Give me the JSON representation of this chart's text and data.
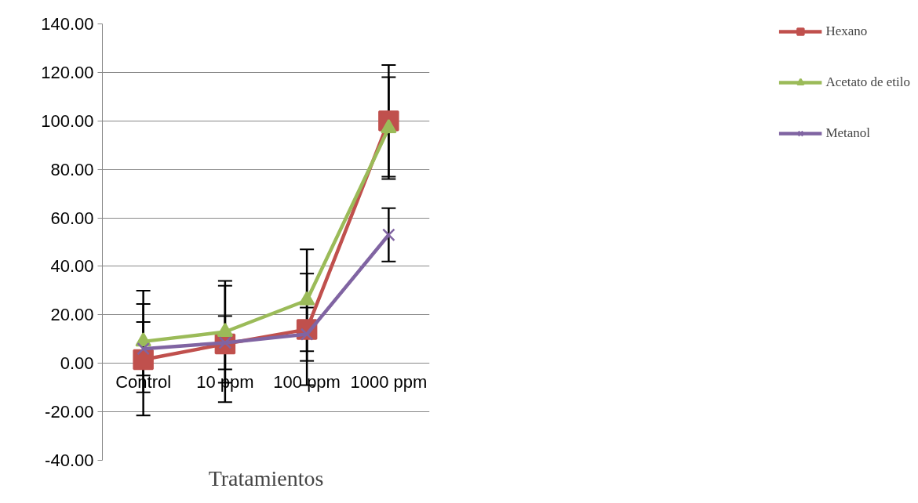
{
  "chart_data": {
    "type": "line",
    "xlabel": "Tratamientos",
    "categories": [
      "Control",
      "10 ppm",
      "100 ppm",
      "1000 ppm"
    ],
    "series": [
      {
        "name": "Hexano",
        "color": "#c0504d",
        "marker": "square",
        "values": [
          1.5,
          8,
          14,
          100
        ],
        "errors": [
          23,
          24,
          23,
          23
        ]
      },
      {
        "name": "Acetato de etilo",
        "color": "#9bbb59",
        "marker": "triangle",
        "values": [
          9,
          13,
          26,
          97
        ],
        "errors": [
          21,
          21,
          21,
          21
        ]
      },
      {
        "name": "Metanol",
        "color": "#8064a2",
        "marker": "cross",
        "values": [
          6,
          8.5,
          12,
          53
        ],
        "errors": [
          11,
          11,
          11,
          11
        ]
      }
    ],
    "ylim": [
      -40,
      140
    ],
    "yticks": [
      {
        "value": -40,
        "label": "-40.00"
      },
      {
        "value": -20,
        "label": "-20.00"
      },
      {
        "value": 0,
        "label": "0.00"
      },
      {
        "value": 20,
        "label": "20.00"
      },
      {
        "value": 40,
        "label": "40.00"
      },
      {
        "value": 60,
        "label": "60.00"
      },
      {
        "value": 80,
        "label": "80.00"
      },
      {
        "value": 100,
        "label": "100.00"
      },
      {
        "value": 120,
        "label": "120.00"
      },
      {
        "value": 140,
        "label": "140.00"
      }
    ],
    "grid": "y",
    "legend": "right"
  }
}
